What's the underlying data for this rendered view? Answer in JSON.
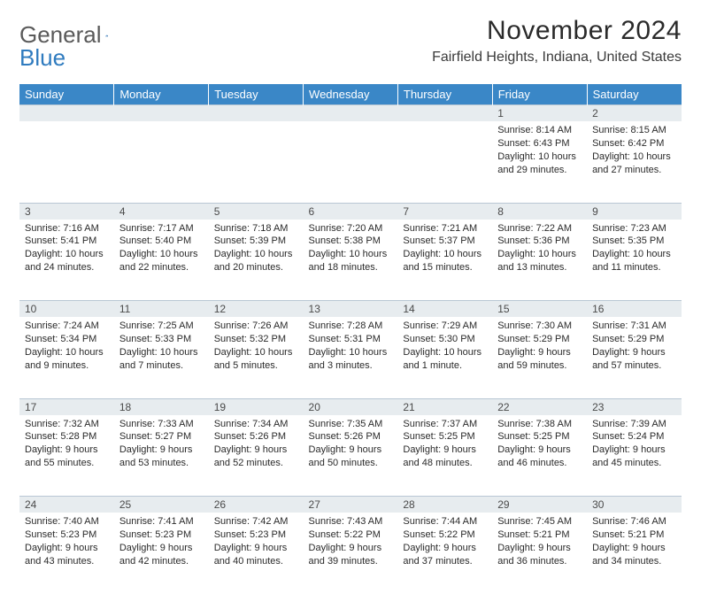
{
  "logo": {
    "line1": "General",
    "line2": "Blue"
  },
  "title": "November 2024",
  "location": "Fairfield Heights, Indiana, United States",
  "colors": {
    "header_bg": "#3a87c7",
    "header_fg": "#ffffff",
    "daynum_bg": "#e7ecef",
    "grid_line": "#b9c7d4",
    "logo_gray": "#5a5a5a",
    "logo_blue": "#2f7bbf"
  },
  "day_headers": [
    "Sunday",
    "Monday",
    "Tuesday",
    "Wednesday",
    "Thursday",
    "Friday",
    "Saturday"
  ],
  "weeks": [
    [
      {
        "n": "",
        "sunrise": "",
        "sunset": "",
        "daylight": ""
      },
      {
        "n": "",
        "sunrise": "",
        "sunset": "",
        "daylight": ""
      },
      {
        "n": "",
        "sunrise": "",
        "sunset": "",
        "daylight": ""
      },
      {
        "n": "",
        "sunrise": "",
        "sunset": "",
        "daylight": ""
      },
      {
        "n": "",
        "sunrise": "",
        "sunset": "",
        "daylight": ""
      },
      {
        "n": "1",
        "sunrise": "Sunrise: 8:14 AM",
        "sunset": "Sunset: 6:43 PM",
        "daylight": "Daylight: 10 hours and 29 minutes."
      },
      {
        "n": "2",
        "sunrise": "Sunrise: 8:15 AM",
        "sunset": "Sunset: 6:42 PM",
        "daylight": "Daylight: 10 hours and 27 minutes."
      }
    ],
    [
      {
        "n": "3",
        "sunrise": "Sunrise: 7:16 AM",
        "sunset": "Sunset: 5:41 PM",
        "daylight": "Daylight: 10 hours and 24 minutes."
      },
      {
        "n": "4",
        "sunrise": "Sunrise: 7:17 AM",
        "sunset": "Sunset: 5:40 PM",
        "daylight": "Daylight: 10 hours and 22 minutes."
      },
      {
        "n": "5",
        "sunrise": "Sunrise: 7:18 AM",
        "sunset": "Sunset: 5:39 PM",
        "daylight": "Daylight: 10 hours and 20 minutes."
      },
      {
        "n": "6",
        "sunrise": "Sunrise: 7:20 AM",
        "sunset": "Sunset: 5:38 PM",
        "daylight": "Daylight: 10 hours and 18 minutes."
      },
      {
        "n": "7",
        "sunrise": "Sunrise: 7:21 AM",
        "sunset": "Sunset: 5:37 PM",
        "daylight": "Daylight: 10 hours and 15 minutes."
      },
      {
        "n": "8",
        "sunrise": "Sunrise: 7:22 AM",
        "sunset": "Sunset: 5:36 PM",
        "daylight": "Daylight: 10 hours and 13 minutes."
      },
      {
        "n": "9",
        "sunrise": "Sunrise: 7:23 AM",
        "sunset": "Sunset: 5:35 PM",
        "daylight": "Daylight: 10 hours and 11 minutes."
      }
    ],
    [
      {
        "n": "10",
        "sunrise": "Sunrise: 7:24 AM",
        "sunset": "Sunset: 5:34 PM",
        "daylight": "Daylight: 10 hours and 9 minutes."
      },
      {
        "n": "11",
        "sunrise": "Sunrise: 7:25 AM",
        "sunset": "Sunset: 5:33 PM",
        "daylight": "Daylight: 10 hours and 7 minutes."
      },
      {
        "n": "12",
        "sunrise": "Sunrise: 7:26 AM",
        "sunset": "Sunset: 5:32 PM",
        "daylight": "Daylight: 10 hours and 5 minutes."
      },
      {
        "n": "13",
        "sunrise": "Sunrise: 7:28 AM",
        "sunset": "Sunset: 5:31 PM",
        "daylight": "Daylight: 10 hours and 3 minutes."
      },
      {
        "n": "14",
        "sunrise": "Sunrise: 7:29 AM",
        "sunset": "Sunset: 5:30 PM",
        "daylight": "Daylight: 10 hours and 1 minute."
      },
      {
        "n": "15",
        "sunrise": "Sunrise: 7:30 AM",
        "sunset": "Sunset: 5:29 PM",
        "daylight": "Daylight: 9 hours and 59 minutes."
      },
      {
        "n": "16",
        "sunrise": "Sunrise: 7:31 AM",
        "sunset": "Sunset: 5:29 PM",
        "daylight": "Daylight: 9 hours and 57 minutes."
      }
    ],
    [
      {
        "n": "17",
        "sunrise": "Sunrise: 7:32 AM",
        "sunset": "Sunset: 5:28 PM",
        "daylight": "Daylight: 9 hours and 55 minutes."
      },
      {
        "n": "18",
        "sunrise": "Sunrise: 7:33 AM",
        "sunset": "Sunset: 5:27 PM",
        "daylight": "Daylight: 9 hours and 53 minutes."
      },
      {
        "n": "19",
        "sunrise": "Sunrise: 7:34 AM",
        "sunset": "Sunset: 5:26 PM",
        "daylight": "Daylight: 9 hours and 52 minutes."
      },
      {
        "n": "20",
        "sunrise": "Sunrise: 7:35 AM",
        "sunset": "Sunset: 5:26 PM",
        "daylight": "Daylight: 9 hours and 50 minutes."
      },
      {
        "n": "21",
        "sunrise": "Sunrise: 7:37 AM",
        "sunset": "Sunset: 5:25 PM",
        "daylight": "Daylight: 9 hours and 48 minutes."
      },
      {
        "n": "22",
        "sunrise": "Sunrise: 7:38 AM",
        "sunset": "Sunset: 5:25 PM",
        "daylight": "Daylight: 9 hours and 46 minutes."
      },
      {
        "n": "23",
        "sunrise": "Sunrise: 7:39 AM",
        "sunset": "Sunset: 5:24 PM",
        "daylight": "Daylight: 9 hours and 45 minutes."
      }
    ],
    [
      {
        "n": "24",
        "sunrise": "Sunrise: 7:40 AM",
        "sunset": "Sunset: 5:23 PM",
        "daylight": "Daylight: 9 hours and 43 minutes."
      },
      {
        "n": "25",
        "sunrise": "Sunrise: 7:41 AM",
        "sunset": "Sunset: 5:23 PM",
        "daylight": "Daylight: 9 hours and 42 minutes."
      },
      {
        "n": "26",
        "sunrise": "Sunrise: 7:42 AM",
        "sunset": "Sunset: 5:23 PM",
        "daylight": "Daylight: 9 hours and 40 minutes."
      },
      {
        "n": "27",
        "sunrise": "Sunrise: 7:43 AM",
        "sunset": "Sunset: 5:22 PM",
        "daylight": "Daylight: 9 hours and 39 minutes."
      },
      {
        "n": "28",
        "sunrise": "Sunrise: 7:44 AM",
        "sunset": "Sunset: 5:22 PM",
        "daylight": "Daylight: 9 hours and 37 minutes."
      },
      {
        "n": "29",
        "sunrise": "Sunrise: 7:45 AM",
        "sunset": "Sunset: 5:21 PM",
        "daylight": "Daylight: 9 hours and 36 minutes."
      },
      {
        "n": "30",
        "sunrise": "Sunrise: 7:46 AM",
        "sunset": "Sunset: 5:21 PM",
        "daylight": "Daylight: 9 hours and 34 minutes."
      }
    ]
  ]
}
